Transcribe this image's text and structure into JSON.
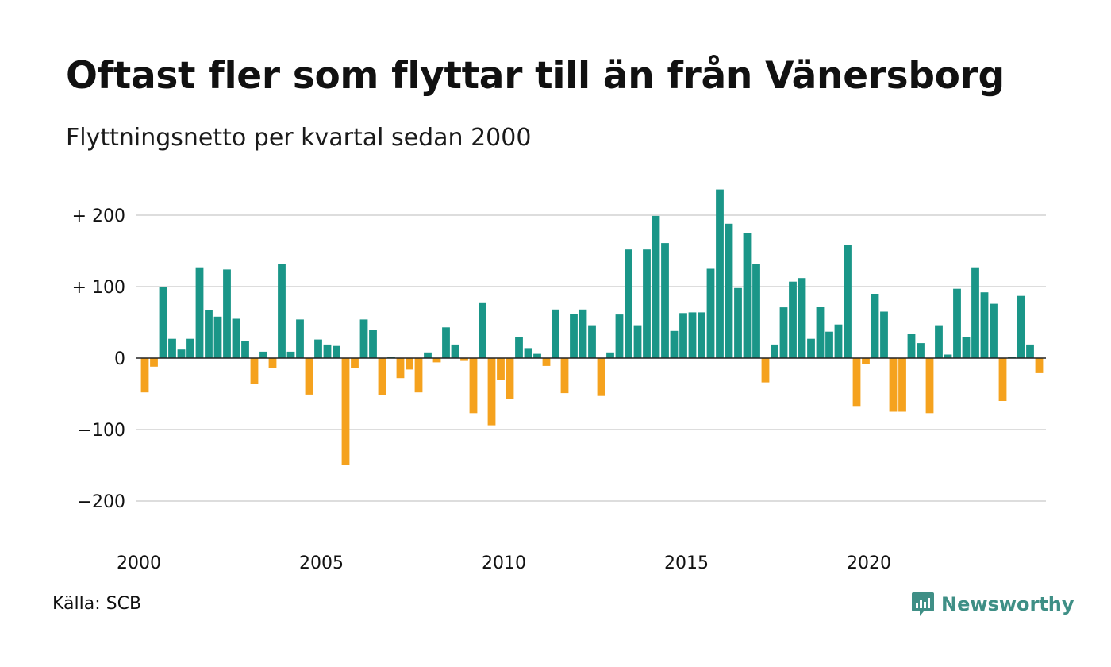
{
  "title": "Oftast fler som flyttar till än från Vänersborg",
  "subtitle": "Flyttningsnetto per kvartal sedan 2000",
  "source": "Källa: SCB",
  "brand": {
    "name": "Newsworthy",
    "logo_icon": "bar-chart-speech-bubble-icon"
  },
  "colors": {
    "positive": "#1a9688",
    "negative": "#f5a21e",
    "grid": "#dddddd",
    "zero": "#222222"
  },
  "chart_data": {
    "type": "bar",
    "x_start": "2000 Q1",
    "frequency": "quarterly",
    "x_ticks": [
      {
        "label": "2000",
        "index": 0
      },
      {
        "label": "2005",
        "index": 20
      },
      {
        "label": "2010",
        "index": 40
      },
      {
        "label": "2015",
        "index": 60
      },
      {
        "label": "2020",
        "index": 80
      }
    ],
    "y_ticks": [
      {
        "value": 200,
        "label": "+ 200"
      },
      {
        "value": 100,
        "label": "+ 100"
      },
      {
        "value": 0,
        "label": "0"
      },
      {
        "value": -100,
        "label": "−100"
      },
      {
        "value": -200,
        "label": "−200"
      }
    ],
    "ylim": [
      -250,
      240
    ],
    "grid": true,
    "values": [
      -48,
      -12,
      99,
      27,
      12,
      27,
      127,
      67,
      58,
      124,
      55,
      24,
      -36,
      9,
      -14,
      132,
      9,
      54,
      -51,
      26,
      19,
      17,
      -149,
      -14,
      54,
      40,
      -52,
      2,
      -28,
      -16,
      -48,
      8,
      -6,
      43,
      19,
      -4,
      -77,
      78,
      -94,
      -31,
      -57,
      29,
      14,
      6,
      -11,
      68,
      -49,
      62,
      68,
      46,
      -53,
      8,
      61,
      152,
      46,
      152,
      199,
      161,
      38,
      63,
      64,
      64,
      125,
      236,
      188,
      98,
      175,
      132,
      -34,
      19,
      71,
      107,
      112,
      27,
      72,
      37,
      47,
      158,
      -67,
      -8,
      90,
      65,
      -75,
      -75,
      34,
      21,
      -77,
      46,
      5,
      97,
      30,
      127,
      92,
      76,
      -60,
      2,
      87,
      19,
      -21
    ]
  }
}
